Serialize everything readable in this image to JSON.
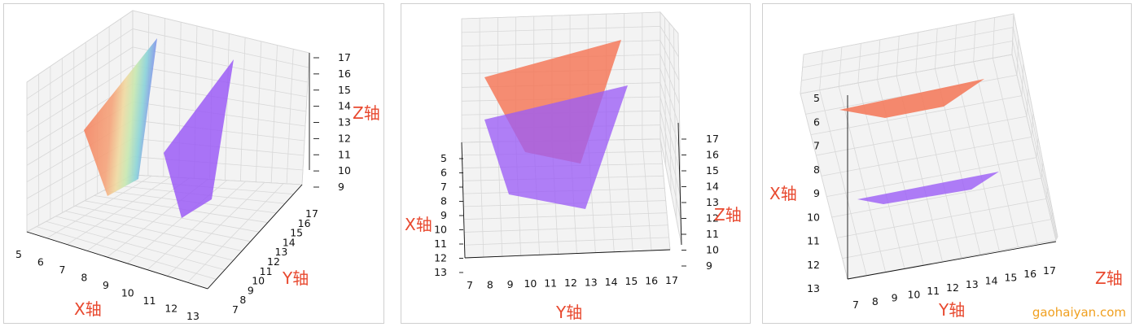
{
  "chart_data": [
    {
      "type": "surface3d",
      "view": "perspective",
      "xlabel": "X轴",
      "ylabel": "Y轴",
      "zlabel": "Z轴",
      "x_ticks": [
        "5",
        "6",
        "7",
        "8",
        "9",
        "10",
        "11",
        "12",
        "13"
      ],
      "y_ticks": [
        "7",
        "8",
        "9",
        "10",
        "11",
        "12",
        "13",
        "14",
        "15",
        "16",
        "17"
      ],
      "z_ticks": [
        "9",
        "10",
        "11",
        "12",
        "13",
        "14",
        "15",
        "16",
        "17"
      ],
      "series": [
        {
          "colormap": "rainbow",
          "color": "#f4795a"
        },
        {
          "color": "#9b5cf6"
        }
      ]
    },
    {
      "type": "surface3d",
      "view": "front",
      "xlabel": "X轴",
      "ylabel": "Y轴",
      "zlabel": "Z轴",
      "x_ticks": [
        "5",
        "6",
        "7",
        "8",
        "9",
        "10",
        "11",
        "12",
        "13"
      ],
      "y_ticks": [
        "7",
        "8",
        "9",
        "10",
        "11",
        "12",
        "13",
        "14",
        "15",
        "16",
        "17"
      ],
      "z_ticks": [
        "9",
        "10",
        "11",
        "12",
        "13",
        "14",
        "15",
        "16",
        "17"
      ],
      "series": [
        {
          "colormap": "rainbow",
          "color": "#f4795a"
        },
        {
          "color": "#9b5cf6"
        }
      ]
    },
    {
      "type": "surface3d",
      "view": "top",
      "xlabel": "X轴",
      "ylabel": "Y轴",
      "zlabel": "Z轴",
      "x_ticks": [
        "5",
        "6",
        "7",
        "8",
        "9",
        "10",
        "11",
        "12",
        "13"
      ],
      "y_ticks": [
        "7",
        "8",
        "9",
        "10",
        "11",
        "12",
        "13",
        "14",
        "15",
        "16",
        "17"
      ],
      "series": [
        {
          "colormap": "rainbow",
          "color": "#f4795a"
        },
        {
          "color": "#9b5cf6"
        }
      ]
    }
  ],
  "watermark": "gaohaiyan.com"
}
